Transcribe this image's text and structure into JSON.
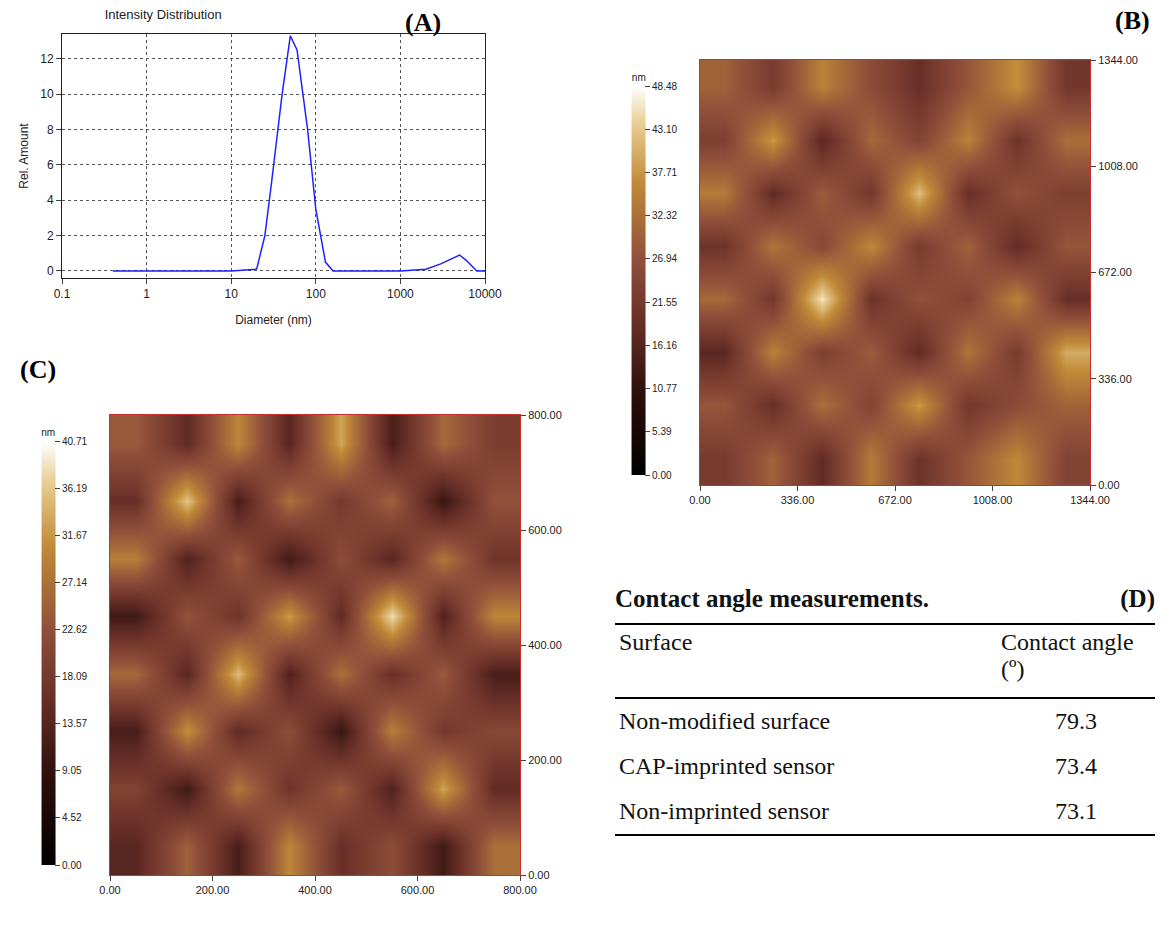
{
  "chart_data": [
    {
      "label": "(A)",
      "type": "line",
      "title": "Intensity Distribution",
      "x_label": "Diameter (nm)",
      "y_label": "Rel. Amount",
      "log": "x",
      "grid": true,
      "color": "#1f1fff",
      "x": [
        0.4,
        10,
        20,
        25,
        30,
        40,
        50,
        60,
        80,
        100,
        130,
        160,
        1000,
        2000,
        3000,
        4000,
        5000,
        6000,
        8000,
        10000
      ],
      "values": [
        0,
        0,
        0.1,
        2,
        5,
        10,
        13.3,
        12.5,
        8,
        3.5,
        0.5,
        0,
        0,
        0.1,
        0.4,
        0.7,
        0.9,
        0.6,
        0,
        0
      ],
      "xlim": [
        0.1,
        10000
      ],
      "xticks": [
        0.1,
        1,
        10,
        100,
        1000,
        10000
      ],
      "ylim": [
        -0.4,
        13.4
      ],
      "yticks": [
        0,
        2,
        4,
        6,
        8,
        10,
        12
      ]
    },
    {
      "label": "(B)",
      "type": "heatmap",
      "colorbar_title": "nm",
      "x": [
        84,
        252,
        420,
        588,
        756,
        924,
        1092,
        1260
      ],
      "y": [
        84,
        252,
        420,
        588,
        756,
        924,
        1092,
        1260
      ],
      "cells": [
        [
          22,
          30,
          18,
          34,
          20,
          28,
          36,
          24
        ],
        [
          28,
          19,
          32,
          24,
          38,
          21,
          26,
          30
        ],
        [
          17,
          35,
          23,
          29,
          18,
          33,
          22,
          40
        ],
        [
          31,
          21,
          46,
          20,
          27,
          24,
          35,
          19
        ],
        [
          20,
          33,
          25,
          36,
          22,
          30,
          18,
          28
        ],
        [
          34,
          18,
          29,
          21,
          42,
          19,
          27,
          23
        ],
        [
          23,
          38,
          17,
          31,
          24,
          35,
          20,
          32
        ],
        [
          30,
          22,
          35,
          26,
          19,
          28,
          37,
          21
        ]
      ],
      "xlim": [
        0,
        1344
      ],
      "ylim": [
        0,
        1344
      ],
      "xticks": [
        {
          "value": 0,
          "label": "0.00"
        },
        {
          "value": 336,
          "label": "336.00"
        },
        {
          "value": 672,
          "label": "672.00"
        },
        {
          "value": 1008,
          "label": "1008.00"
        },
        {
          "value": 1344,
          "label": "1344.00"
        }
      ],
      "yticks": [
        {
          "value": 0,
          "label": "0.00"
        },
        {
          "value": 336,
          "label": "336.00"
        },
        {
          "value": 672,
          "label": "672.00"
        },
        {
          "value": 1008,
          "label": "1008.00"
        },
        {
          "value": 1344,
          "label": "1344.00"
        }
      ],
      "colorbar_range": [
        0,
        48.48
      ],
      "colorbar_ticks": [
        {
          "value": 0,
          "label": "0.00"
        },
        {
          "value": 5.39,
          "label": "5.39"
        },
        {
          "value": 10.77,
          "label": "10.77"
        },
        {
          "value": 16.16,
          "label": "16.16"
        },
        {
          "value": 21.55,
          "label": "21.55"
        },
        {
          "value": 26.94,
          "label": "26.94"
        },
        {
          "value": 32.32,
          "label": "32.32"
        },
        {
          "value": 37.71,
          "label": "37.71"
        },
        {
          "value": 43.1,
          "label": "43.10"
        },
        {
          "value": 48.48,
          "label": "48.48"
        }
      ]
    },
    {
      "label": "(C)",
      "type": "heatmap",
      "colorbar_title": "nm",
      "x": [
        50,
        150,
        250,
        350,
        450,
        550,
        650,
        750
      ],
      "y": [
        50,
        150,
        250,
        350,
        450,
        550,
        650,
        750
      ],
      "cells": [
        [
          14,
          25,
          12,
          30,
          16,
          22,
          11,
          27
        ],
        [
          20,
          11,
          28,
          17,
          24,
          13,
          33,
          15
        ],
        [
          12,
          31,
          15,
          22,
          10,
          29,
          18,
          21
        ],
        [
          26,
          14,
          35,
          13,
          27,
          16,
          24,
          12
        ],
        [
          11,
          23,
          17,
          32,
          15,
          38,
          13,
          30
        ],
        [
          29,
          13,
          24,
          11,
          22,
          14,
          28,
          17
        ],
        [
          16,
          36,
          12,
          27,
          18,
          25,
          10,
          23
        ],
        [
          24,
          15,
          30,
          14,
          33,
          12,
          26,
          19
        ]
      ],
      "xlim": [
        0,
        800
      ],
      "ylim": [
        0,
        800
      ],
      "xticks": [
        {
          "value": 0,
          "label": "0.00"
        },
        {
          "value": 200,
          "label": "200.00"
        },
        {
          "value": 400,
          "label": "400.00"
        },
        {
          "value": 600,
          "label": "600.00"
        },
        {
          "value": 800,
          "label": "800.00"
        }
      ],
      "yticks": [
        {
          "value": 0,
          "label": "0.00"
        },
        {
          "value": 200,
          "label": "200.00"
        },
        {
          "value": 400,
          "label": "400.00"
        },
        {
          "value": 600,
          "label": "600.00"
        },
        {
          "value": 800,
          "label": "800.00"
        }
      ],
      "colorbar_range": [
        0,
        40.71
      ],
      "colorbar_ticks": [
        {
          "value": 0,
          "label": "0.00"
        },
        {
          "value": 4.52,
          "label": "4.52"
        },
        {
          "value": 9.05,
          "label": "9.05"
        },
        {
          "value": 13.57,
          "label": "13.57"
        },
        {
          "value": 18.09,
          "label": "18.09"
        },
        {
          "value": 22.62,
          "label": "22.62"
        },
        {
          "value": 27.14,
          "label": "27.14"
        },
        {
          "value": 31.67,
          "label": "31.67"
        },
        {
          "value": 36.19,
          "label": "36.19"
        },
        {
          "value": 40.71,
          "label": "40.71"
        }
      ]
    }
  ],
  "table": {
    "label": "(D)",
    "title": "Contact angle measurements.",
    "columns": [
      "Surface",
      "Contact angle (º)"
    ],
    "rows": [
      [
        "Non-modified surface",
        79.3
      ],
      [
        "CAP-imprinted sensor",
        73.4
      ],
      [
        "Non-imprinted sensor",
        73.1
      ]
    ]
  }
}
